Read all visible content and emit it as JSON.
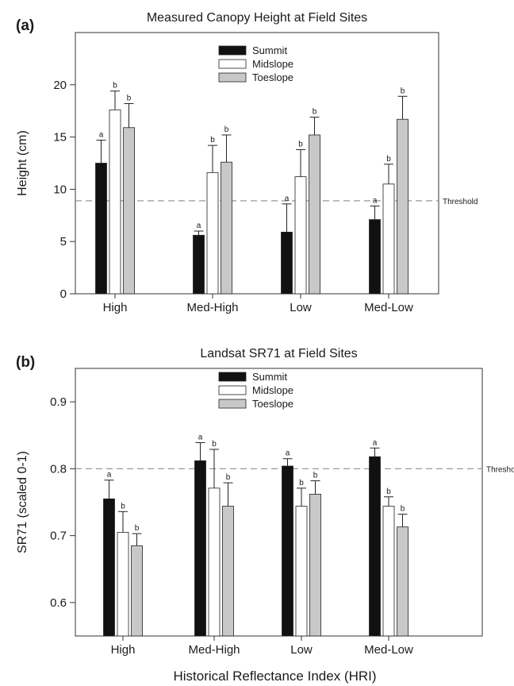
{
  "chart_data": [
    {
      "panel": "(a)",
      "type": "bar",
      "title": "Measured Canopy Height at Field Sites",
      "ylabel": "Height (cm)",
      "xlabel": "",
      "categories": [
        "High",
        "Med-High",
        "Low",
        "Med-Low"
      ],
      "ylim": [
        0,
        25
      ],
      "yticks": [
        0,
        5,
        10,
        15,
        20
      ],
      "grid": false,
      "legend": "top-center",
      "series": [
        {
          "name": "Summit",
          "color": "#111111",
          "values": [
            12.5,
            5.6,
            5.9,
            7.1
          ],
          "errors": [
            2.2,
            0.4,
            2.7,
            1.3
          ],
          "letters": [
            "a",
            "a",
            "a",
            "a"
          ]
        },
        {
          "name": "Midslope",
          "color": "#ffffff",
          "values": [
            17.6,
            11.6,
            11.2,
            10.5
          ],
          "errors": [
            1.8,
            2.6,
            2.6,
            1.9
          ],
          "letters": [
            "b",
            "b",
            "b",
            "b"
          ]
        },
        {
          "name": "Toeslope",
          "color": "#c8c8c8",
          "values": [
            15.9,
            12.6,
            15.2,
            16.7
          ],
          "errors": [
            2.3,
            2.6,
            1.7,
            2.2
          ],
          "letters": [
            "b",
            "b",
            "b",
            "b"
          ]
        }
      ],
      "threshold": {
        "value": 8.9,
        "label": "Threshold"
      }
    },
    {
      "panel": "(b)",
      "type": "bar",
      "title": "Landsat SR71 at Field Sites",
      "ylabel": "SR71 (scaled 0-1)",
      "xlabel": "Historical Reflectance Index (HRI)",
      "categories": [
        "High",
        "Med-High",
        "Low",
        "Med-Low"
      ],
      "ylim": [
        0.55,
        0.95
      ],
      "yticks": [
        0.6,
        0.7,
        0.8,
        0.9
      ],
      "grid": false,
      "legend": "top-center",
      "series": [
        {
          "name": "Summit",
          "color": "#111111",
          "values": [
            0.755,
            0.812,
            0.804,
            0.818
          ],
          "errors": [
            0.028,
            0.027,
            0.011,
            0.013
          ],
          "letters": [
            "a",
            "a",
            "a",
            "a"
          ]
        },
        {
          "name": "Midslope",
          "color": "#ffffff",
          "values": [
            0.705,
            0.771,
            0.744,
            0.744
          ],
          "errors": [
            0.031,
            0.058,
            0.027,
            0.014
          ],
          "letters": [
            "b",
            "b",
            "b",
            "b"
          ]
        },
        {
          "name": "Toeslope",
          "color": "#c8c8c8",
          "values": [
            0.685,
            0.744,
            0.762,
            0.713
          ],
          "errors": [
            0.018,
            0.035,
            0.02,
            0.019
          ],
          "letters": [
            "b",
            "b",
            "b",
            "b"
          ]
        }
      ],
      "threshold": {
        "value": 0.8,
        "label": "Threshold"
      }
    }
  ]
}
